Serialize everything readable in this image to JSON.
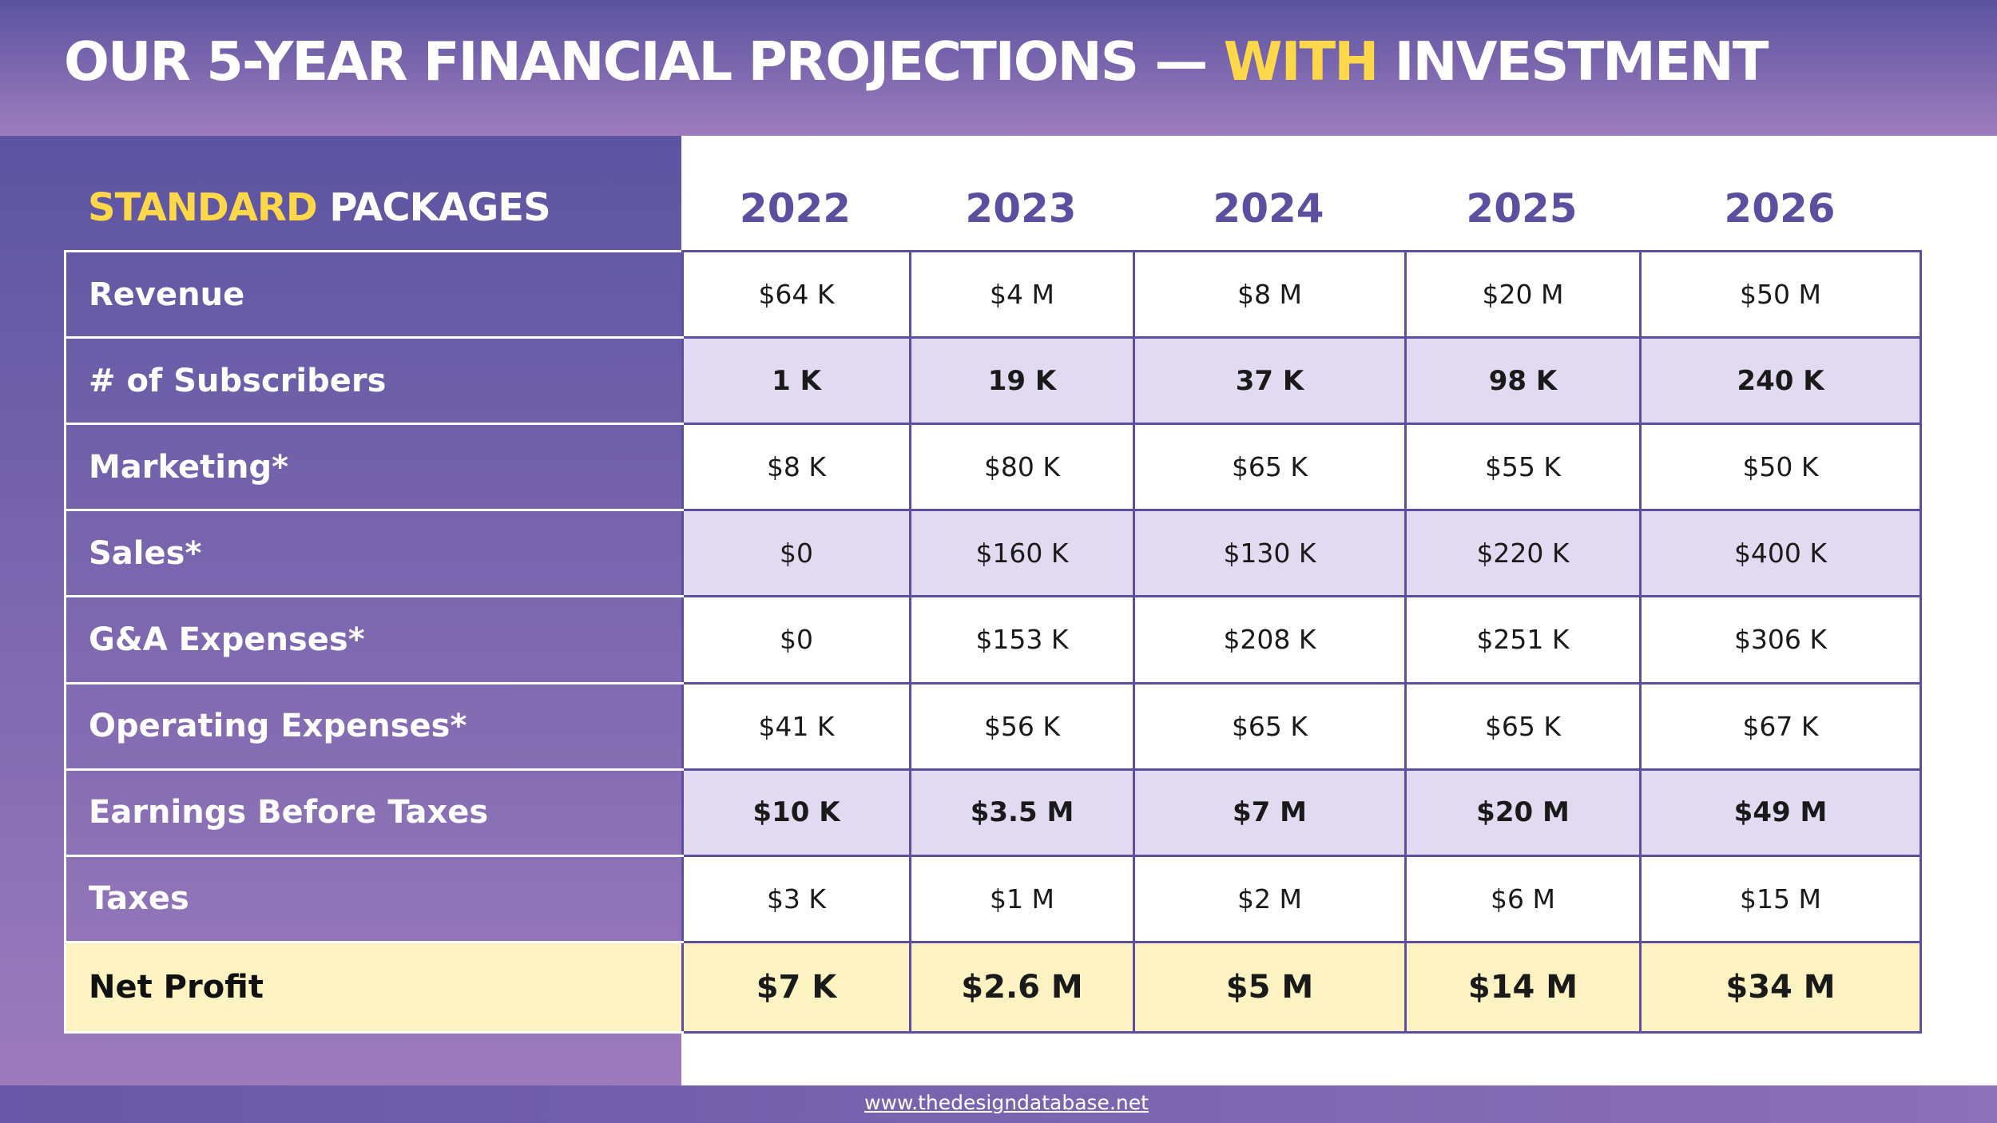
{
  "header": {
    "title_part1": "OUR 5-YEAR FINANCIAL PROJECTIONS — ",
    "title_highlight": "WITH",
    "title_part2": " INVESTMENT"
  },
  "table": {
    "section_highlight": "STANDARD",
    "section_rest": " PACKAGES",
    "years": [
      "2022",
      "2023",
      "2024",
      "2025",
      "2026"
    ],
    "rows": [
      {
        "label": "Revenue",
        "values": [
          "$64 K",
          "$4 M",
          "$8 M",
          "$20 M",
          "$50 M"
        ]
      },
      {
        "label": "# of Subscribers",
        "values": [
          "1 K",
          "19 K",
          "37 K",
          "98 K",
          "240 K"
        ]
      },
      {
        "label": "Marketing*",
        "values": [
          "$8 K",
          "$80 K",
          "$65 K",
          "$55 K",
          "$50 K"
        ]
      },
      {
        "label": "Sales*",
        "values": [
          "$0",
          "$160 K",
          "$130 K",
          "$220 K",
          "$400 K"
        ]
      },
      {
        "label": "G&A Expenses*",
        "values": [
          "$0",
          "$153 K",
          "$208 K",
          "$251 K",
          "$306 K"
        ]
      },
      {
        "label": "Operating Expenses*",
        "values": [
          "$41 K",
          "$56 K",
          "$65 K",
          "$65 K",
          "$67 K"
        ]
      },
      {
        "label": "Earnings Before Taxes",
        "values": [
          "$10 K",
          "$3.5 M",
          "$7 M",
          "$20 M",
          "$49 M"
        ]
      },
      {
        "label": "Taxes",
        "values": [
          "$3 K",
          "$1 M",
          "$2 M",
          "$6 M",
          "$15 M"
        ]
      },
      {
        "label": "Net Profit",
        "values": [
          "$7 K",
          "$2.6 M",
          "$5 M",
          "$14 M",
          "$34 M"
        ]
      }
    ]
  },
  "footer": {
    "website": "www.thedesigndatabase.net"
  },
  "colors": {
    "header_purple": "#5b53a0",
    "accent_yellow": "#ffd84a",
    "row_shade": "#e1daf0",
    "net_profit_bg": "#fdf3c2",
    "year_text": "#5b4fa0"
  }
}
